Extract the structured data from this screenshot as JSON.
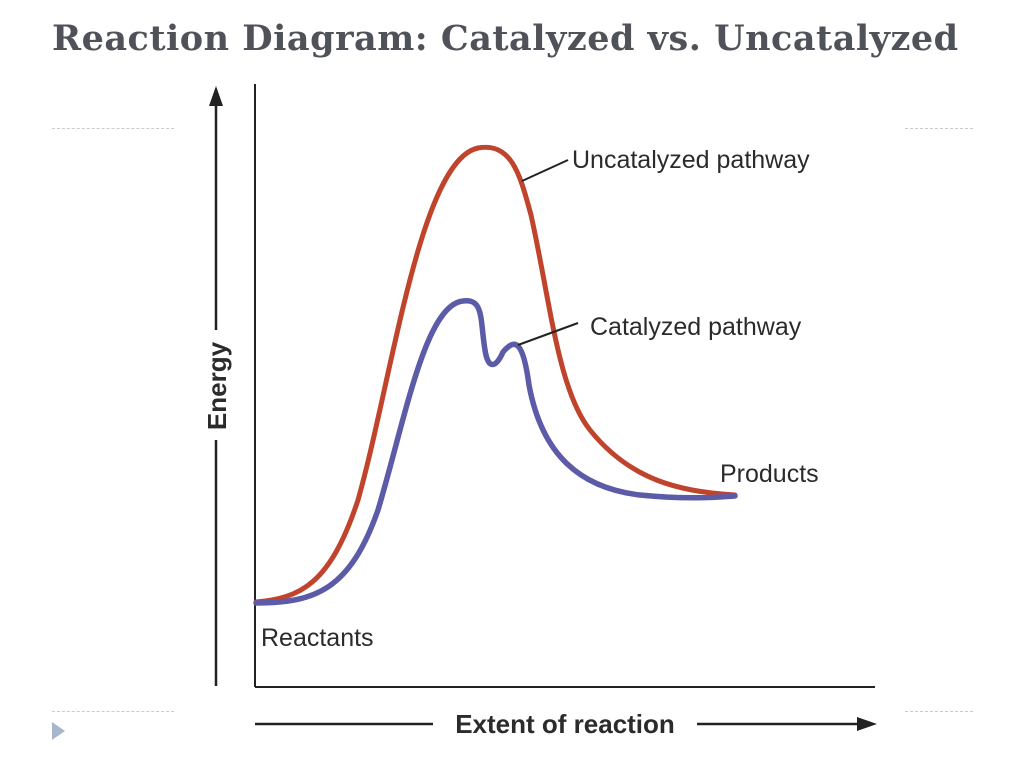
{
  "slide": {
    "title": "Reaction Diagram: Catalyzed vs. Uncatalyzed"
  },
  "diagram": {
    "y_axis_label": "Energy",
    "x_axis_label": "Extent of reaction",
    "labels": {
      "uncatalyzed": "Uncatalyzed pathway",
      "catalyzed": "Catalyzed pathway",
      "products": "Products",
      "reactants": "Reactants"
    },
    "colors": {
      "uncatalyzed": "#c0432b",
      "catalyzed": "#5b5ba8",
      "axis": "#222222",
      "title": "#4f5258"
    }
  }
}
